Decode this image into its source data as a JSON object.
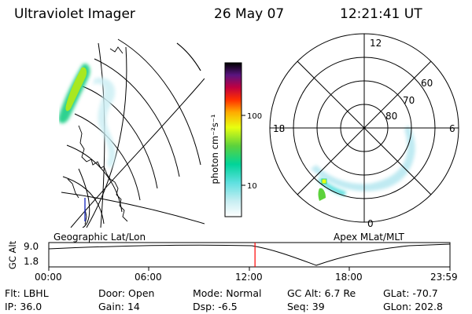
{
  "header": {
    "instrument": "Ultraviolet Imager",
    "date": "26 May 07",
    "time": "12:21:41 UT"
  },
  "left_panel": {
    "label": "Geographic Lat/Lon"
  },
  "right_panel": {
    "label": "Apex MLat/MLT",
    "mlt_labels": {
      "top": "12",
      "left": "18",
      "right": "6",
      "bottom": "0"
    },
    "lat_labels": [
      "60",
      "70",
      "80"
    ]
  },
  "colorbar": {
    "unit_label": "photon cm⁻²s⁻¹",
    "ticks": [
      "100",
      "10"
    ],
    "scale": "log"
  },
  "altitude_strip": {
    "axis_label": "GC Alt",
    "y_ticks": [
      "9.0",
      "1.8"
    ],
    "time_ticks": [
      "00:00",
      "06:00",
      "12:00",
      "18:00",
      "23:59"
    ],
    "current_time_fraction": 0.514,
    "marker_color": "#ff0000"
  },
  "footer": {
    "row1": [
      {
        "key": "Flt:",
        "value": "LBHL"
      },
      {
        "key": "Door:",
        "value": "Open"
      },
      {
        "key": "Mode:",
        "value": "Normal"
      },
      {
        "key": "GC Alt:",
        "value": "6.7 Re"
      },
      {
        "key": "GLat:",
        "value": "-70.7"
      }
    ],
    "row2": [
      {
        "key": "IP:",
        "value": "36.0"
      },
      {
        "key": "Gain:",
        "value": "14"
      },
      {
        "key": "Dsp:",
        "value": "-6.5"
      },
      {
        "key": "Seq:",
        "value": "39"
      },
      {
        "key": "GLon:",
        "value": "202.8"
      }
    ]
  }
}
